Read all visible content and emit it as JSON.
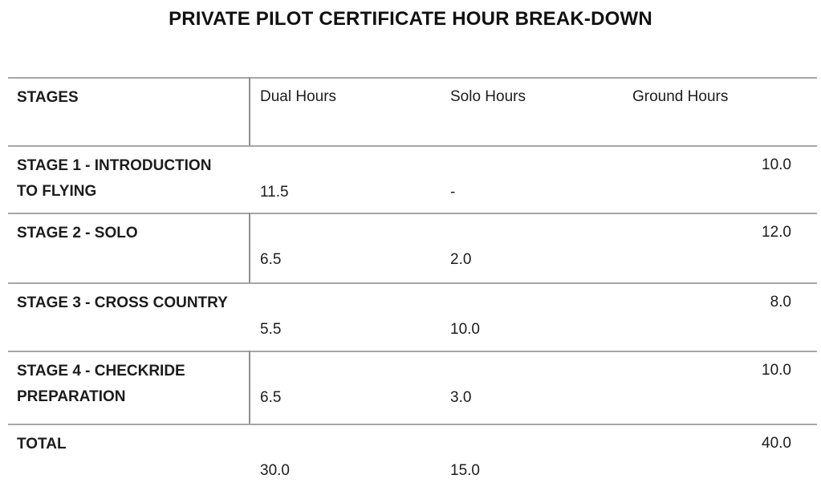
{
  "title": "PRIVATE PILOT CERTIFICATE HOUR BREAK-DOWN",
  "table": {
    "columns": {
      "stages": "STAGES",
      "dual": "Dual Hours",
      "solo": "Solo Hours",
      "ground": "Ground Hours"
    },
    "rows": [
      {
        "stage": "STAGE 1 - INTRODUCTION\nTO FLYING",
        "dual": "11.5",
        "solo": "-",
        "ground": "10.0",
        "divider": false
      },
      {
        "stage": "STAGE 2 - SOLO",
        "dual": "6.5",
        "solo": "2.0",
        "ground": "12.0",
        "divider": true
      },
      {
        "stage": "STAGE 3 - CROSS COUNTRY",
        "dual": "5.5",
        "solo": "10.0",
        "ground": "8.0",
        "divider": false
      },
      {
        "stage": "STAGE 4 - CHECKRIDE\nPREPARATION",
        "dual": "6.5",
        "solo": "3.0",
        "ground": "10.0",
        "divider": true
      },
      {
        "stage": "TOTAL",
        "dual": "30.0",
        "solo": "15.0",
        "ground": "40.0",
        "divider": false
      }
    ]
  },
  "colors": {
    "background": "#ffffff",
    "text": "#1c1c1c",
    "horizontal_rule": "#a6a6a6",
    "vertical_rule": "#8f8f8f"
  }
}
